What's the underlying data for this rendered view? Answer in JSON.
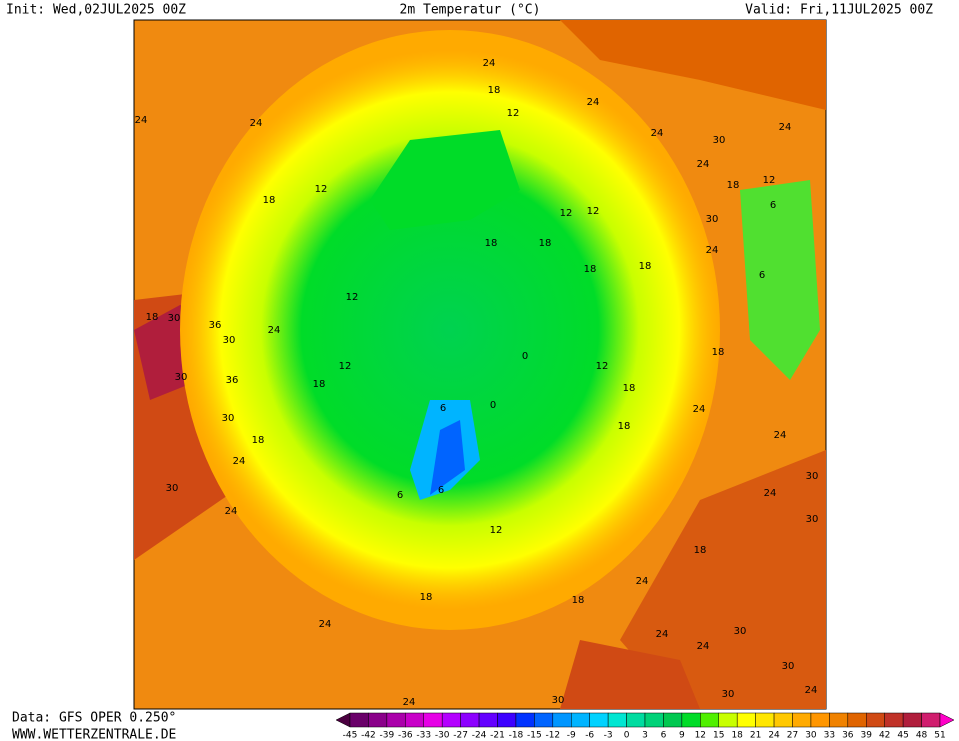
{
  "header": {
    "init": "Init: Wed,02JUL2025 00Z",
    "title": "2m Temperatur (°C)",
    "valid": "Valid: Fri,11JUL2025 00Z"
  },
  "footer": {
    "source": "Data: GFS OPER 0.250°",
    "website": "WWW.WETTERZENTRALE.DE"
  },
  "colorbar": {
    "labels": [
      -45,
      -42,
      -39,
      -36,
      -33,
      -30,
      -27,
      -24,
      -21,
      -18,
      -15,
      -12,
      -9,
      -6,
      -3,
      0,
      3,
      6,
      9,
      12,
      15,
      18,
      21,
      24,
      27,
      30,
      33,
      36,
      39,
      42,
      45,
      48,
      51
    ],
    "colors": [
      "#4b0040",
      "#6a006a",
      "#8a008a",
      "#aa00aa",
      "#c800c8",
      "#e600e6",
      "#b400ff",
      "#8c00ff",
      "#6400ff",
      "#3c00ff",
      "#0032ff",
      "#0064ff",
      "#0096ff",
      "#00b4ff",
      "#00d2ff",
      "#00e6d2",
      "#00dca0",
      "#00d278",
      "#00c850",
      "#00dc28",
      "#50f000",
      "#c8ff00",
      "#ffff00",
      "#ffe600",
      "#ffc800",
      "#ffaa00",
      "#ff9600",
      "#f08200",
      "#e06400",
      "#d04a14",
      "#c03228",
      "#b01e3c",
      "#d01e6e",
      "#ff00c8"
    ]
  },
  "map": {
    "contour_labels": [
      24,
      18,
      12,
      24,
      24,
      12,
      18,
      18,
      18,
      18,
      18,
      12,
      18,
      30,
      36,
      24,
      30,
      12,
      18,
      30,
      36,
      30,
      18,
      24,
      30,
      24,
      6,
      0,
      0,
      6,
      6,
      12,
      18,
      24,
      24,
      18,
      18,
      24,
      24,
      30,
      24,
      30,
      18,
      24,
      24,
      30,
      24,
      30,
      24,
      30,
      24,
      24,
      30,
      24,
      24,
      18,
      12,
      6,
      30,
      24,
      6,
      18,
      12,
      30,
      18,
      12,
      12
    ]
  }
}
